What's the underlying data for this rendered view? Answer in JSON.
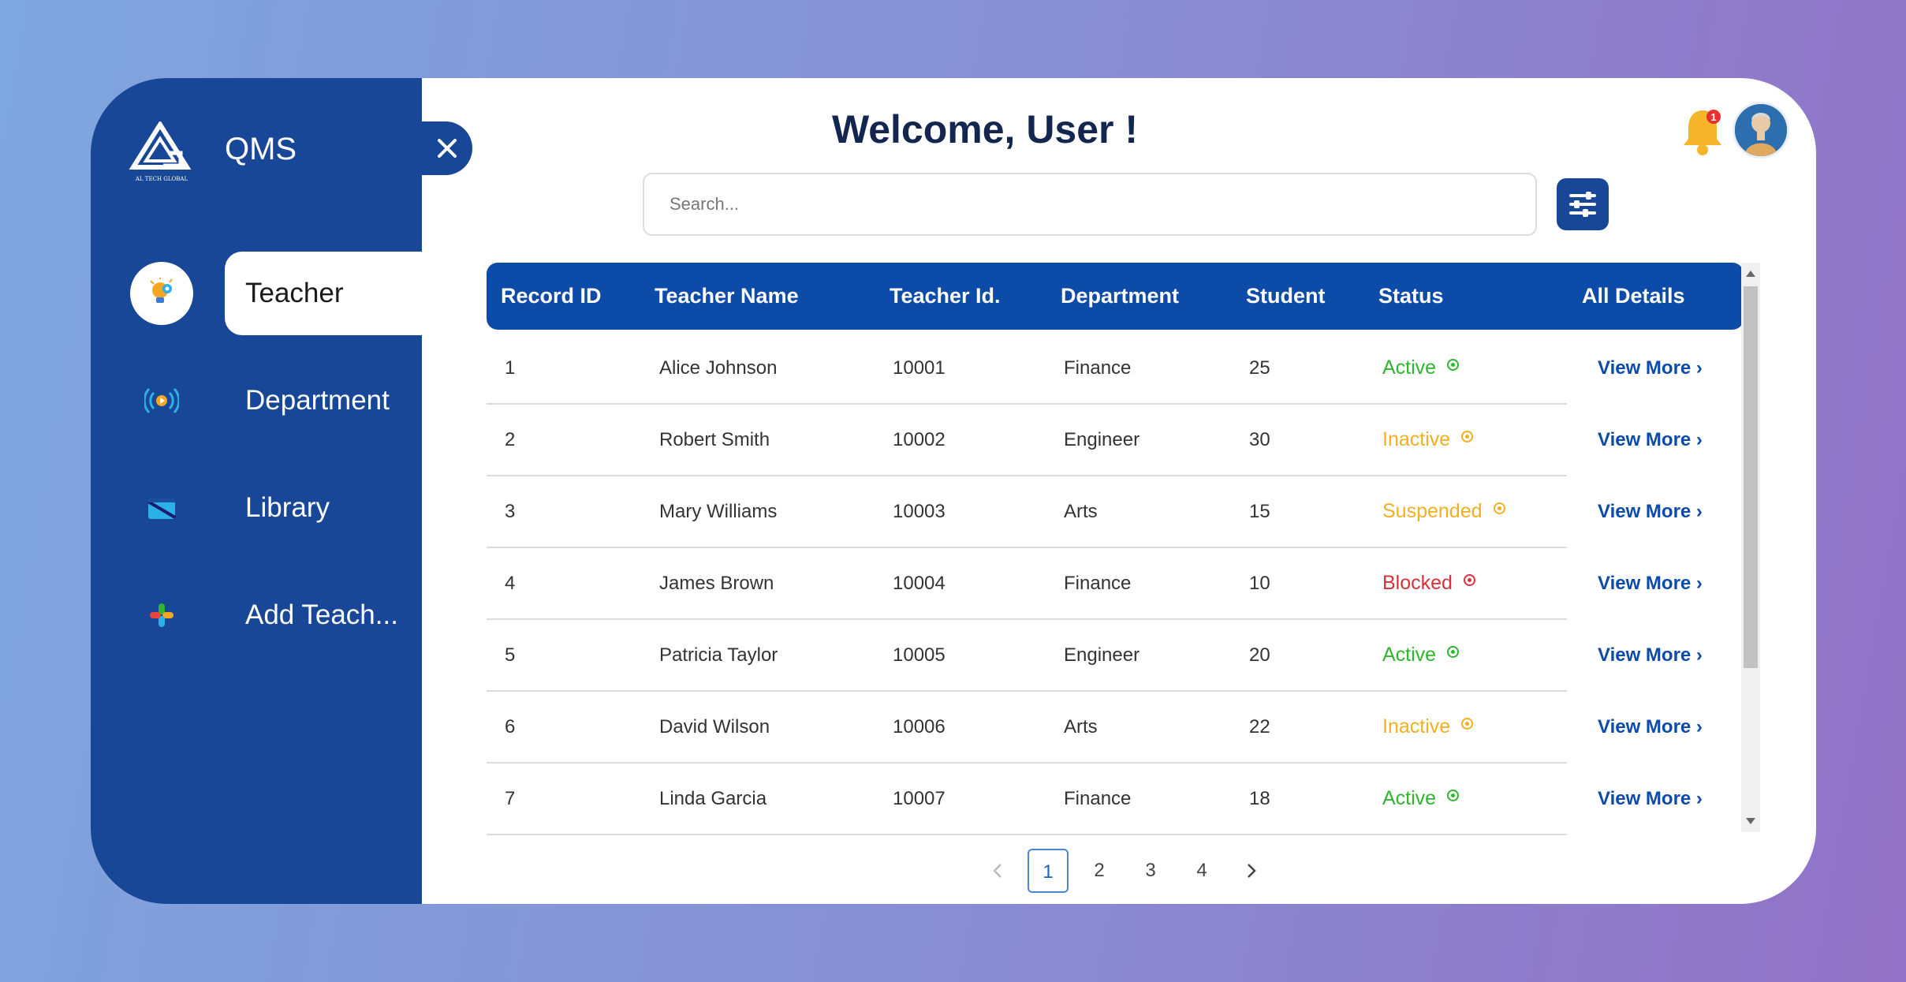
{
  "app": {
    "name": "QMS",
    "logo_caption": "AL TECH GLOBAL"
  },
  "sidebar": {
    "items": [
      {
        "label": "Teacher",
        "icon": "lightbulb-gear-icon",
        "active": true
      },
      {
        "label": "Department",
        "icon": "broadcast-icon",
        "active": false
      },
      {
        "label": "Library",
        "icon": "book-icon",
        "active": false
      },
      {
        "label": "Add Teach...",
        "icon": "plus-icon",
        "active": false
      }
    ]
  },
  "header": {
    "welcome": "Welcome, User !",
    "notification_count": "1"
  },
  "search": {
    "placeholder": "Search..."
  },
  "table": {
    "columns": [
      "Record ID",
      "Teacher Name",
      "Teacher Id.",
      "Department",
      "Student",
      "Status",
      "All Details"
    ],
    "rows": [
      {
        "record_id": "1",
        "name": "Alice Johnson",
        "teacher_id": "10001",
        "department": "Finance",
        "students": "25",
        "status": "Active",
        "details": "View More ›"
      },
      {
        "record_id": "2",
        "name": "Robert Smith",
        "teacher_id": "10002",
        "department": "Engineer",
        "students": "30",
        "status": "Inactive",
        "details": "View More ›"
      },
      {
        "record_id": "3",
        "name": "Mary Williams",
        "teacher_id": "10003",
        "department": "Arts",
        "students": "15",
        "status": "Suspended",
        "details": "View More ›"
      },
      {
        "record_id": "4",
        "name": "James Brown",
        "teacher_id": "10004",
        "department": "Finance",
        "students": "10",
        "status": "Blocked",
        "details": "View More ›"
      },
      {
        "record_id": "5",
        "name": "Patricia Taylor",
        "teacher_id": "10005",
        "department": "Engineer",
        "students": "20",
        "status": "Active",
        "details": "View More ›"
      },
      {
        "record_id": "6",
        "name": "David Wilson",
        "teacher_id": "10006",
        "department": "Arts",
        "students": "22",
        "status": "Inactive",
        "details": "View More ›"
      },
      {
        "record_id": "7",
        "name": "Linda Garcia",
        "teacher_id": "10007",
        "department": "Finance",
        "students": "18",
        "status": "Active",
        "details": "View More ›"
      }
    ]
  },
  "status_colors": {
    "Active": "#2fb52f",
    "Inactive": "#f0b020",
    "Suspended": "#f0b020",
    "Blocked": "#d9303a"
  },
  "pagination": {
    "pages": [
      "1",
      "2",
      "3",
      "4"
    ],
    "current": "1"
  },
  "colors": {
    "sidebar": "#194797",
    "header_row": "#0d4ba8",
    "title": "#13264f"
  }
}
